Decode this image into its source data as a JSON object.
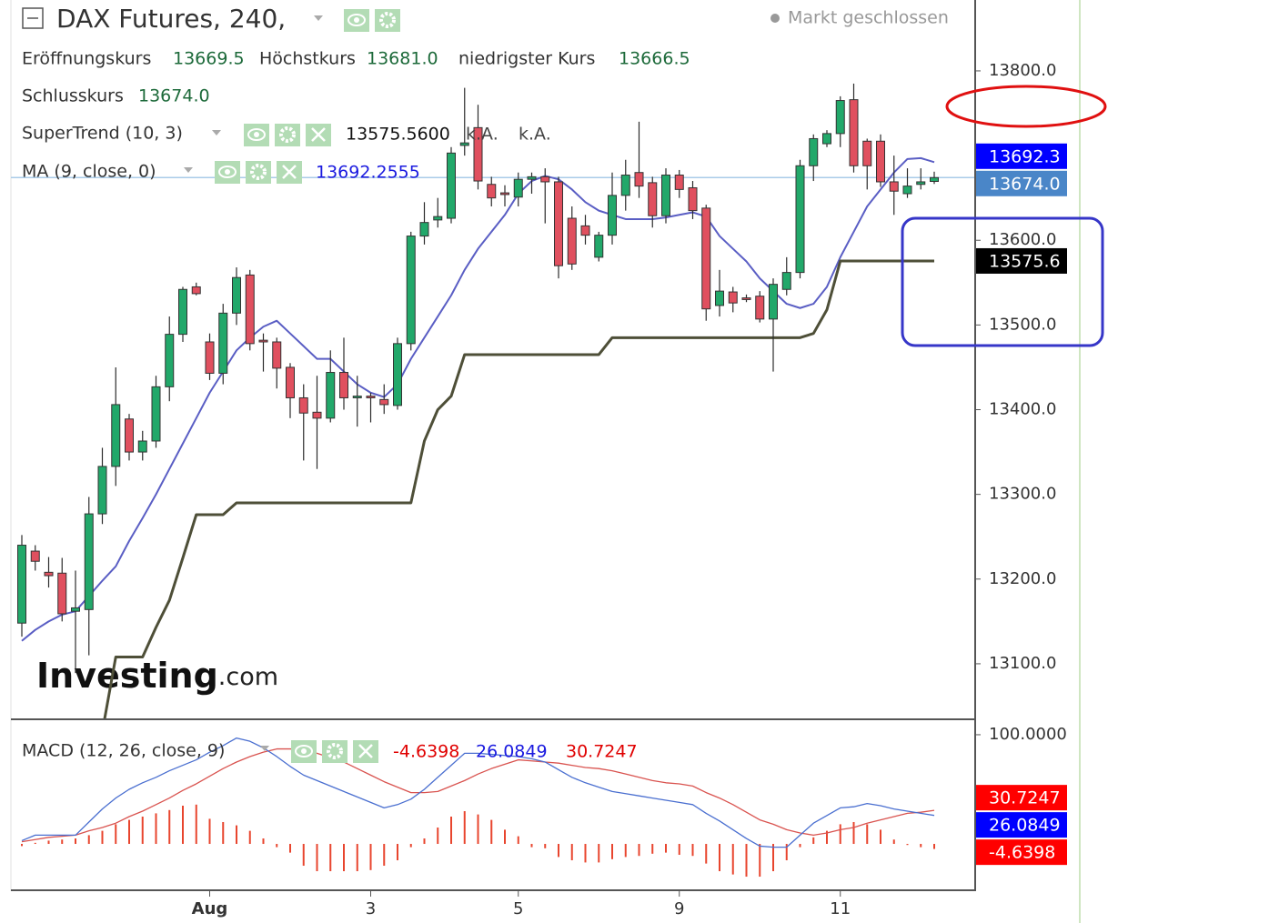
{
  "chart_data": [
    {
      "type": "candlestick",
      "title": "DAX Futures, 240,",
      "status": "Markt geschlossen",
      "legend": {
        "ohlc_labels": [
          "Eröffnungskurs",
          "Höchstkurs",
          "niedrigster Kurs",
          "Schlusskurs"
        ],
        "ohlc_values": [
          "13669.5",
          "13681.0",
          "13666.5",
          "13674.0"
        ],
        "indicators": [
          {
            "label": "SuperTrend (10, 3)",
            "values": [
              "13575.5600",
              "k.A.",
              "k.A."
            ]
          },
          {
            "label": "MA (9, close, 0)",
            "values": [
              "13692.2555"
            ]
          }
        ]
      },
      "watermark": [
        "Investing",
        ".com"
      ],
      "open": [
        13148,
        13233,
        13208,
        13207,
        13162,
        13164,
        13277,
        13333,
        13389,
        13350,
        13363,
        13427,
        13489,
        13545,
        13480,
        13443,
        13514,
        13559,
        13482,
        13480,
        13450,
        13414,
        13397,
        13390,
        13444,
        13414,
        13416,
        13412,
        13405,
        13478,
        13605,
        13624,
        13626,
        13712,
        13733,
        13666,
        13656,
        13651,
        13672,
        13675,
        13669,
        13626,
        13617,
        13580,
        13606,
        13653,
        13680,
        13668,
        13629,
        13677,
        13662,
        13638,
        13523,
        13539,
        13532,
        13534,
        13507,
        13542,
        13562,
        13688,
        13714,
        13726,
        13766,
        13717,
        13717,
        13669,
        13655,
        13666,
        13669.5
      ],
      "high": [
        13252,
        13240,
        13226,
        13225,
        13210,
        13297,
        13355,
        13450,
        13395,
        13375,
        13440,
        13510,
        13545,
        13550,
        13490,
        13525,
        13568,
        13565,
        13490,
        13485,
        13455,
        13430,
        13440,
        13470,
        13485,
        13440,
        13420,
        13430,
        13485,
        13610,
        13645,
        13650,
        13710,
        13780,
        13760,
        13675,
        13665,
        13680,
        13680,
        13685,
        13675,
        13640,
        13630,
        13610,
        13680,
        13695,
        13740,
        13675,
        13685,
        13683,
        13670,
        13642,
        13565,
        13545,
        13536,
        13540,
        13555,
        13580,
        13695,
        13725,
        13730,
        13770,
        13785,
        13720,
        13725,
        13700,
        13685,
        13685,
        13681
      ],
      "low": [
        13132,
        13210,
        13190,
        13150,
        13089,
        13110,
        13265,
        13310,
        13340,
        13340,
        13355,
        13410,
        13480,
        13535,
        13435,
        13430,
        13500,
        13470,
        13445,
        13425,
        13390,
        13340,
        13330,
        13385,
        13400,
        13380,
        13385,
        13395,
        13400,
        13470,
        13595,
        13615,
        13620,
        13700,
        13660,
        13640,
        13640,
        13640,
        13655,
        13620,
        13555,
        13565,
        13595,
        13575,
        13595,
        13635,
        13650,
        13615,
        13620,
        13650,
        13625,
        13505,
        13510,
        13515,
        13527,
        13503,
        13445,
        13535,
        13555,
        13670,
        13710,
        13710,
        13680,
        13660,
        13663,
        13630,
        13650,
        13660,
        13666.5
      ],
      "close": [
        13240,
        13221,
        13204,
        13159,
        13166,
        13277,
        13333,
        13406,
        13350,
        13363,
        13427,
        13489,
        13542,
        13537,
        13443,
        13514,
        13556,
        13478,
        13480,
        13449,
        13414,
        13396,
        13390,
        13444,
        13414,
        13416,
        13414,
        13406,
        13478,
        13605,
        13621,
        13628,
        13703,
        13715,
        13670,
        13650,
        13654,
        13672,
        13675,
        13669,
        13570,
        13572,
        13606,
        13606,
        13653,
        13677,
        13664,
        13629,
        13677,
        13660,
        13635,
        13519,
        13540,
        13526,
        13530,
        13507,
        13548,
        13562,
        13688,
        13720,
        13726,
        13765,
        13688,
        13688,
        13669,
        13658,
        13664,
        13669,
        13674
      ],
      "up_color": "#22a86a",
      "down_color": "#e0505f",
      "close_line_color": "#a9cbe8",
      "lines": [
        {
          "color": "#5a5ec4",
          "values": [
            13127,
            13140,
            13150,
            13158,
            13162,
            13180,
            13198,
            13215,
            13245,
            13272,
            13300,
            13330,
            13360,
            13390,
            13420,
            13445,
            13470,
            13485,
            13498,
            13505,
            13490,
            13475,
            13460,
            13460,
            13445,
            13430,
            13420,
            13415,
            13430,
            13460,
            13485,
            13510,
            13535,
            13565,
            13590,
            13610,
            13630,
            13655,
            13670,
            13676,
            13672,
            13660,
            13645,
            13635,
            13630,
            13625,
            13625,
            13625,
            13627,
            13630,
            13633,
            13628,
            13605,
            13590,
            13575,
            13555,
            13540,
            13525,
            13520,
            13525,
            13545,
            13580,
            13610,
            13640,
            13660,
            13680,
            13696,
            13697,
            13692.2555
          ]
        },
        {
          "color": "#4e4f38",
          "values": [
            null,
            null,
            null,
            null,
            null,
            null,
            13020,
            13108,
            13108,
            13108,
            13143,
            13175,
            13225,
            13276,
            13276,
            13276,
            13290,
            13290,
            13290,
            13290,
            13290,
            13290,
            13290,
            13290,
            13290,
            13290,
            13290,
            13290,
            13290,
            13290,
            13363,
            13400,
            13416,
            13465,
            13465,
            13465,
            13465,
            13465,
            13465,
            13465,
            13465,
            13465,
            13465,
            13465,
            13485,
            13485,
            13485,
            13485,
            13485,
            13485,
            13485,
            13485,
            13485,
            13485,
            13485,
            13485,
            13485,
            13485,
            13485,
            13490,
            13518,
            13575.56,
            13575.56,
            13575.56,
            13575.56,
            13575.56,
            13575.56,
            13575.56,
            13575.56
          ]
        }
      ],
      "price_tags": [
        {
          "value": 13692.3,
          "color": "#0000ff"
        },
        {
          "value": 13674,
          "label": "13674.0",
          "color": "#4a86c8"
        },
        {
          "value": 13575.6,
          "color": "#000000"
        }
      ],
      "ylim": [
        13035.5,
        13883.7
      ],
      "yticks": [
        {
          "value": 13100,
          "label": "13100.0"
        },
        {
          "value": 13200,
          "label": "13200.0"
        },
        {
          "value": 13300,
          "label": "13300.0"
        },
        {
          "value": 13400,
          "label": "13400.0"
        },
        {
          "value": 13500,
          "label": "13500.0"
        },
        {
          "value": 13600,
          "label": "13600.0"
        },
        {
          "value": 13800,
          "label": "13800.0"
        }
      ]
    },
    {
      "type": "macd",
      "legend": {
        "label": "MACD (12, 26, close, 9)",
        "values": [
          "-4.6398",
          "26.0849",
          "30.7247"
        ]
      },
      "categories": [
        null,
        null,
        null,
        null,
        null,
        null,
        null,
        null,
        null,
        null,
        null,
        null,
        null,
        null,
        "Aug",
        null,
        null,
        null,
        null,
        null,
        null,
        null,
        null,
        null,
        null,
        null,
        "3",
        null,
        null,
        null,
        null,
        null,
        null,
        null,
        null,
        null,
        null,
        "5",
        null,
        null,
        null,
        null,
        null,
        null,
        null,
        null,
        null,
        null,
        null,
        "9",
        null,
        null,
        null,
        null,
        null,
        null,
        null,
        null,
        null,
        null,
        null,
        "11",
        null,
        null,
        null,
        null,
        null,
        null,
        null
      ],
      "macd": {
        "color": "#4a6fd0",
        "values": [
          3,
          8,
          8,
          8,
          8,
          20,
          32,
          42,
          50,
          56,
          61,
          67,
          72,
          77,
          84,
          90,
          97,
          94,
          88,
          80,
          71,
          63,
          58,
          53,
          48,
          43,
          38,
          33,
          36,
          41,
          50,
          61,
          72,
          83,
          83,
          82,
          81,
          80,
          78,
          75,
          68,
          61,
          56,
          52,
          48,
          46,
          44,
          42,
          40,
          38,
          36,
          28,
          21,
          13,
          5,
          -2,
          -3,
          -3,
          8,
          19,
          26,
          33,
          34,
          37,
          35,
          32,
          30,
          28,
          26.0849
        ]
      },
      "signal": {
        "color": "#d9534f",
        "values": [
          2,
          4,
          6,
          7,
          8,
          12,
          15,
          19,
          25,
          30,
          36,
          42,
          49,
          55,
          62,
          69,
          75,
          80,
          84,
          87,
          87,
          86,
          83,
          79,
          75,
          69,
          63,
          57,
          52,
          47,
          47,
          48,
          53,
          58,
          64,
          69,
          73,
          77,
          76,
          75,
          74,
          72,
          70,
          69,
          67,
          64,
          61,
          58,
          56,
          55,
          53,
          47,
          42,
          36,
          29,
          22,
          18,
          13,
          10,
          8,
          10,
          13,
          15,
          19,
          22,
          25,
          28,
          29,
          30.7247
        ]
      },
      "histogram": {
        "color": "#e8452e",
        "values": [
          -2,
          1,
          3,
          4,
          5,
          8,
          12,
          18,
          22,
          25,
          28,
          31,
          35,
          36,
          23,
          20,
          17,
          12,
          5,
          -3,
          -8,
          -20,
          -25,
          -25,
          -25,
          -25,
          -24,
          -20,
          -15,
          -3,
          5,
          15,
          25,
          30,
          27,
          22,
          13,
          7,
          -3,
          -4,
          -12,
          -15,
          -17,
          -17,
          -14,
          -12,
          -11,
          -9,
          -8,
          -10,
          -11,
          -18,
          -25,
          -28,
          -30,
          -30,
          -25,
          -15,
          -3,
          6,
          12,
          18,
          20,
          18,
          13,
          4,
          -1,
          -3,
          -4.6398
        ]
      },
      "price_tags": [
        {
          "value": 30.7247,
          "color": "#ff0000"
        },
        {
          "value": 26.0849,
          "color": "#0000ff"
        },
        {
          "value": -4.6398,
          "color": "#ff0000"
        }
      ],
      "ylim": [
        -40.8,
        110.8
      ],
      "yticks": [
        {
          "value": 100,
          "label": "100.0000"
        }
      ]
    }
  ]
}
